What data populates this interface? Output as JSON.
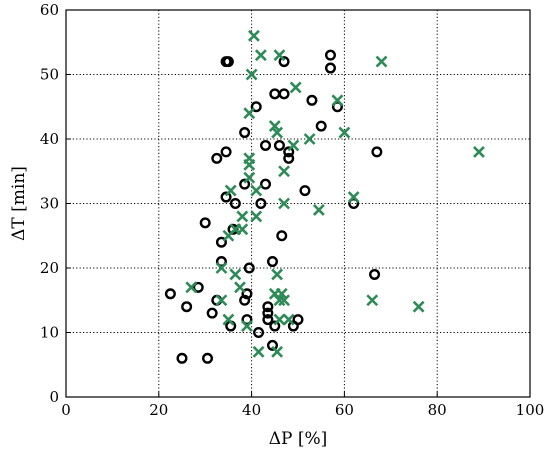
{
  "chart_data": {
    "type": "scatter",
    "title": "",
    "xlabel": "ΔP [%]",
    "ylabel": "ΔT [min]",
    "xlim": [
      0,
      100
    ],
    "ylim": [
      0,
      60
    ],
    "x_ticks": [
      "0",
      "20",
      "40",
      "60",
      "80",
      "100"
    ],
    "y_ticks": [
      "0",
      "10",
      "20",
      "30",
      "40",
      "50",
      "60"
    ],
    "grid": true,
    "legend": "none",
    "series": [
      {
        "marker": "circle",
        "color": "#000000",
        "points": [
          [
            34.5,
            52
          ],
          [
            35,
            52
          ],
          [
            47,
            52
          ],
          [
            57,
            53
          ],
          [
            57,
            51
          ],
          [
            45,
            47
          ],
          [
            47,
            47
          ],
          [
            53,
            46
          ],
          [
            41,
            45
          ],
          [
            58.5,
            45
          ],
          [
            55,
            42
          ],
          [
            38.5,
            41
          ],
          [
            43,
            39
          ],
          [
            46,
            39
          ],
          [
            48,
            38
          ],
          [
            67,
            38
          ],
          [
            34.5,
            38
          ],
          [
            32.5,
            37
          ],
          [
            48,
            37
          ],
          [
            43,
            33
          ],
          [
            38.5,
            33
          ],
          [
            51.5,
            32
          ],
          [
            34.5,
            31
          ],
          [
            42,
            30
          ],
          [
            36.5,
            30
          ],
          [
            62,
            30
          ],
          [
            30,
            27
          ],
          [
            36,
            26
          ],
          [
            33.5,
            24
          ],
          [
            46.5,
            25
          ],
          [
            33.5,
            21
          ],
          [
            44.5,
            21
          ],
          [
            39.5,
            20
          ],
          [
            66.5,
            19
          ],
          [
            28.5,
            17
          ],
          [
            22.5,
            16
          ],
          [
            39,
            16
          ],
          [
            38.5,
            15
          ],
          [
            32.5,
            15
          ],
          [
            26,
            14
          ],
          [
            43.5,
            14
          ],
          [
            43.5,
            13
          ],
          [
            31.5,
            13
          ],
          [
            43.5,
            12
          ],
          [
            39,
            12
          ],
          [
            50,
            12
          ],
          [
            35.5,
            11
          ],
          [
            45,
            11
          ],
          [
            49,
            11
          ],
          [
            41.5,
            10
          ],
          [
            44.5,
            8
          ],
          [
            25,
            6
          ],
          [
            30.5,
            6
          ]
        ]
      },
      {
        "marker": "x",
        "color": "#2e8b57",
        "points": [
          [
            40.5,
            56
          ],
          [
            42,
            53
          ],
          [
            46,
            53
          ],
          [
            68,
            52
          ],
          [
            40,
            50
          ],
          [
            49.5,
            48
          ],
          [
            58.5,
            46
          ],
          [
            39.5,
            44
          ],
          [
            45,
            42
          ],
          [
            45.5,
            41
          ],
          [
            60,
            41
          ],
          [
            52.5,
            40
          ],
          [
            49,
            39
          ],
          [
            89,
            38
          ],
          [
            39.5,
            37
          ],
          [
            39.5,
            36
          ],
          [
            47,
            35
          ],
          [
            39.5,
            34
          ],
          [
            41,
            32
          ],
          [
            35.5,
            32
          ],
          [
            62,
            31
          ],
          [
            47,
            30
          ],
          [
            54.5,
            29
          ],
          [
            38,
            28
          ],
          [
            41,
            28
          ],
          [
            36.5,
            26
          ],
          [
            38,
            26
          ],
          [
            35,
            25
          ],
          [
            33.5,
            20
          ],
          [
            36.5,
            19
          ],
          [
            45.5,
            19
          ],
          [
            37.5,
            17
          ],
          [
            27,
            17
          ],
          [
            45,
            16
          ],
          [
            46.5,
            16
          ],
          [
            46,
            15
          ],
          [
            33.5,
            15
          ],
          [
            66,
            15
          ],
          [
            47,
            15
          ],
          [
            76,
            14
          ],
          [
            35,
            12
          ],
          [
            46,
            12
          ],
          [
            48,
            12
          ],
          [
            39,
            11
          ],
          [
            41.5,
            7
          ],
          [
            45.5,
            7
          ]
        ]
      }
    ]
  }
}
